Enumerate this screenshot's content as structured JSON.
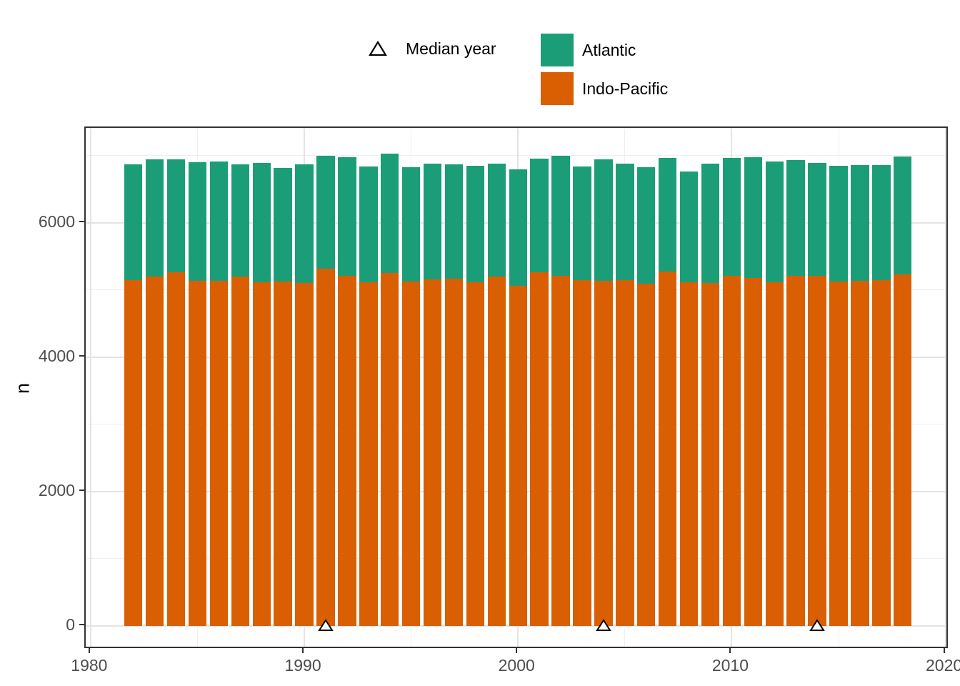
{
  "legend": {
    "median_marker_label": "Median year",
    "series": [
      {
        "name": "Atlantic",
        "color": "#1b9e77"
      },
      {
        "name": "Indo-Pacific",
        "color": "#d95f02"
      }
    ]
  },
  "chart_data": {
    "type": "bar",
    "stacked": true,
    "title": "",
    "xlabel": "",
    "ylabel": "n",
    "legend_position": "top",
    "grid": true,
    "x": [
      1982,
      1983,
      1984,
      1985,
      1986,
      1987,
      1988,
      1989,
      1990,
      1991,
      1992,
      1993,
      1994,
      1995,
      1996,
      1997,
      1998,
      1999,
      2000,
      2001,
      2002,
      2003,
      2004,
      2005,
      2006,
      2007,
      2008,
      2009,
      2010,
      2011,
      2012,
      2013,
      2014,
      2015,
      2016,
      2017,
      2018
    ],
    "series": [
      {
        "name": "Indo-Pacific",
        "color": "#d95f02",
        "values": [
          5150,
          5195,
          5260,
          5140,
          5135,
          5195,
          5110,
          5120,
          5100,
          5320,
          5205,
          5115,
          5250,
          5125,
          5155,
          5170,
          5110,
          5195,
          5060,
          5260,
          5205,
          5145,
          5135,
          5145,
          5095,
          5275,
          5110,
          5100,
          5205,
          5175,
          5110,
          5205,
          5215,
          5125,
          5140,
          5150,
          5235
        ]
      },
      {
        "name": "Atlantic",
        "color": "#1b9e77",
        "values": [
          1720,
          1745,
          1685,
          1765,
          1780,
          1675,
          1780,
          1700,
          1770,
          1680,
          1765,
          1720,
          1780,
          1705,
          1725,
          1695,
          1740,
          1680,
          1735,
          1695,
          1790,
          1690,
          1805,
          1730,
          1735,
          1690,
          1655,
          1775,
          1755,
          1800,
          1800,
          1730,
          1670,
          1725,
          1720,
          1710,
          1750
        ]
      }
    ],
    "median_year_markers": [
      1991,
      2004,
      2014
    ],
    "marker_shape": "open-triangle",
    "marker_fill": "#ffffff",
    "marker_stroke": "#000000",
    "x_ticks": [
      "1980",
      "1990",
      "2000",
      "2010",
      "2020"
    ],
    "x_tick_values": [
      1980,
      1990,
      2000,
      2010,
      2020
    ],
    "x_minor_values": [
      1985,
      1995,
      2005,
      2015
    ],
    "y_ticks": [
      "0",
      "2000",
      "4000",
      "6000"
    ],
    "y_tick_values": [
      0,
      2000,
      4000,
      6000
    ],
    "y_minor_values": [
      1000,
      3000,
      5000,
      7000
    ],
    "x_domain": [
      1979.77,
      2020.18
    ],
    "y_domain": [
      -351,
      7411
    ],
    "bar_width_years": 0.85
  },
  "style_colors": {
    "grid_major": "#e4e4e4",
    "grid_minor": "#efefef",
    "panel_border": "#333333",
    "axis_text": "#4d4d4d",
    "tick_mark": "#333333"
  }
}
